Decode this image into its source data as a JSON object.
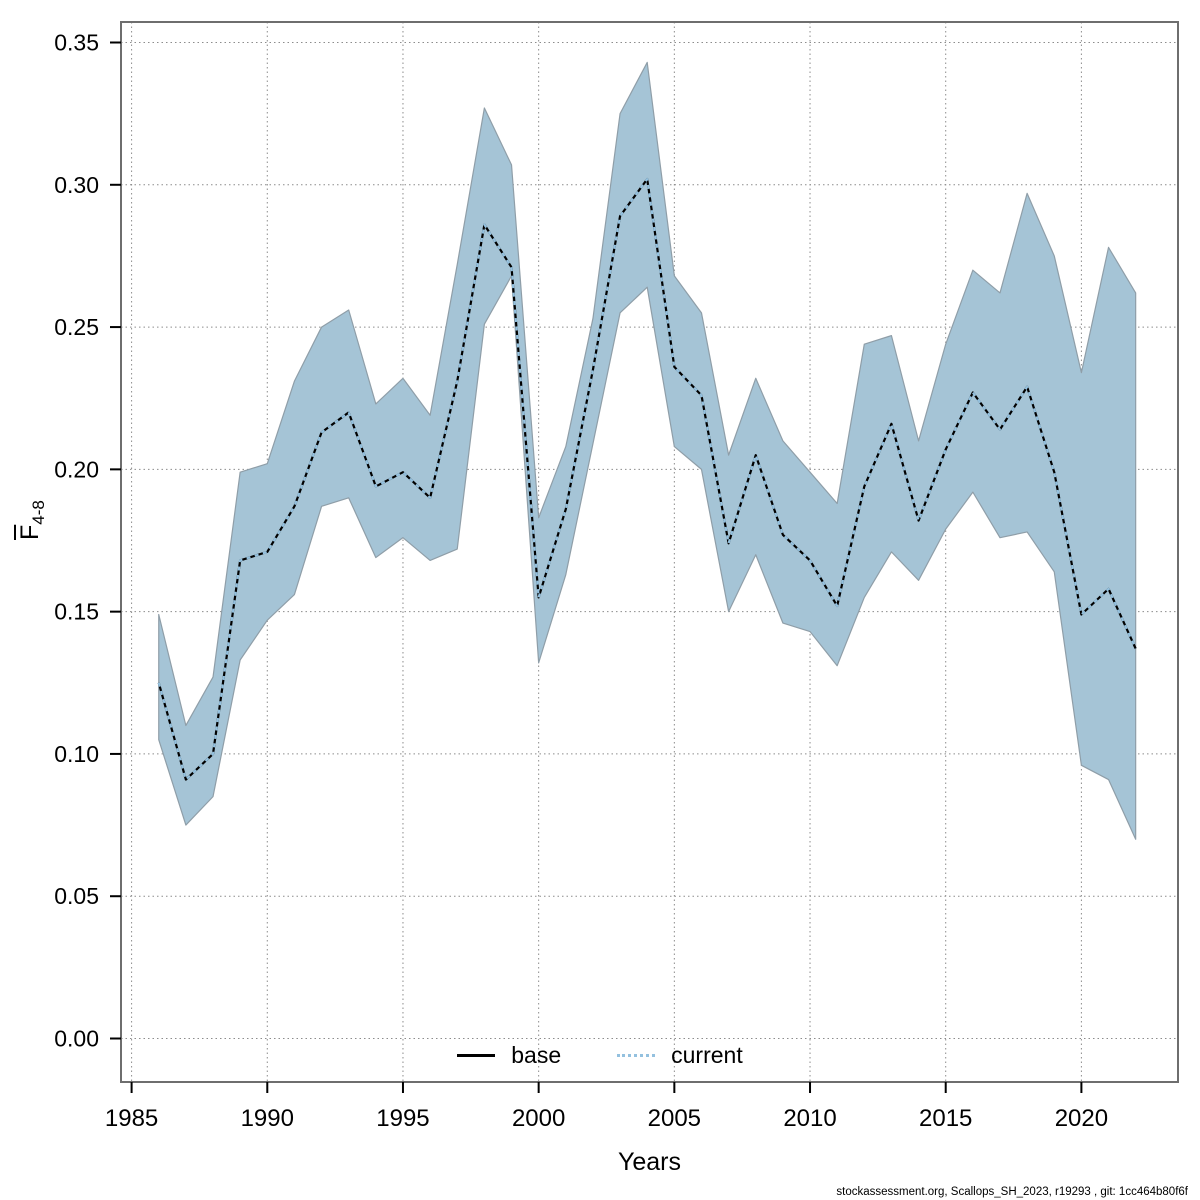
{
  "figure": {
    "xlabel": "Years",
    "ylabel_f": "F",
    "ylabel_sub": "4-8",
    "footer": "stockassessment.org, Scallops_SH_2023, r19293 , git: 1cc464b80f6f",
    "legend": {
      "base_label": "base",
      "current_label": "current"
    }
  },
  "colors": {
    "band_fill": "#a5c4d6",
    "band_edge": "#8f9ea8",
    "base_line": "#000000",
    "current_line": "#94c1df",
    "grid": "#8c8c8c",
    "box": "#6e6e6e",
    "tick": "#000000",
    "text": "#000000"
  },
  "chart_data": {
    "type": "line",
    "title": "",
    "xlabel": "Years",
    "ylabel": "F_4-8",
    "legend_position": "bottom-center-inside",
    "grid": "dotted",
    "xlim": [
      1984.6,
      2023.6
    ],
    "ylim": [
      -0.015,
      0.357
    ],
    "x_tick_labels": [
      "1985",
      "1990",
      "1995",
      "2000",
      "2005",
      "2010",
      "2015",
      "2020"
    ],
    "x_tick_values": [
      1985,
      1990,
      1995,
      2000,
      2005,
      2010,
      2015,
      2020
    ],
    "y_tick_labels": [
      "0.00",
      "0.05",
      "0.10",
      "0.15",
      "0.20",
      "0.25",
      "0.30",
      "0.35"
    ],
    "y_tick_values": [
      0.0,
      0.05,
      0.1,
      0.15,
      0.2,
      0.25,
      0.3,
      0.35
    ],
    "years": [
      1986,
      1987,
      1988,
      1989,
      1990,
      1991,
      1992,
      1993,
      1994,
      1995,
      1996,
      1997,
      1998,
      1999,
      2000,
      2001,
      2002,
      2003,
      2004,
      2005,
      2006,
      2007,
      2008,
      2009,
      2010,
      2011,
      2012,
      2013,
      2014,
      2015,
      2016,
      2017,
      2018,
      2019,
      2020,
      2021,
      2022
    ],
    "series": [
      {
        "name": "base",
        "style": "solid",
        "color": "#000000",
        "values": [
          0.125,
          0.091,
          0.1,
          0.168,
          0.171,
          0.187,
          0.213,
          0.22,
          0.194,
          0.199,
          0.19,
          0.231,
          0.286,
          0.271,
          0.155,
          0.186,
          0.235,
          0.289,
          0.302,
          0.236,
          0.226,
          0.174,
          0.205,
          0.177,
          0.168,
          0.152,
          0.194,
          0.216,
          0.182,
          0.207,
          0.227,
          0.214,
          0.229,
          0.199,
          0.149,
          0.158,
          0.137
        ]
      },
      {
        "name": "current",
        "style": "dotted",
        "color": "#94c1df",
        "values": [
          0.125,
          0.091,
          0.1,
          0.168,
          0.171,
          0.187,
          0.213,
          0.22,
          0.194,
          0.199,
          0.19,
          0.231,
          0.286,
          0.271,
          0.155,
          0.186,
          0.235,
          0.289,
          0.302,
          0.236,
          0.226,
          0.174,
          0.205,
          0.177,
          0.168,
          0.152,
          0.194,
          0.216,
          0.182,
          0.207,
          0.227,
          0.214,
          0.229,
          0.199,
          0.149,
          0.158,
          0.137
        ]
      }
    ],
    "confidence_band": {
      "series": "current",
      "fill": "#a5c4d6",
      "lower": [
        0.105,
        0.075,
        0.085,
        0.133,
        0.147,
        0.156,
        0.187,
        0.19,
        0.169,
        0.176,
        0.168,
        0.172,
        0.251,
        0.268,
        0.132,
        0.163,
        0.209,
        0.255,
        0.264,
        0.208,
        0.2,
        0.15,
        0.17,
        0.146,
        0.143,
        0.131,
        0.155,
        0.171,
        0.161,
        0.179,
        0.192,
        0.176,
        0.178,
        0.164,
        0.096,
        0.091,
        0.07
      ],
      "upper": [
        0.149,
        0.11,
        0.127,
        0.199,
        0.202,
        0.231,
        0.25,
        0.256,
        0.223,
        0.232,
        0.219,
        0.272,
        0.327,
        0.307,
        0.183,
        0.208,
        0.253,
        0.325,
        0.343,
        0.268,
        0.255,
        0.205,
        0.232,
        0.21,
        0.199,
        0.188,
        0.244,
        0.247,
        0.21,
        0.244,
        0.27,
        0.262,
        0.297,
        0.275,
        0.234,
        0.278,
        0.262
      ]
    }
  }
}
